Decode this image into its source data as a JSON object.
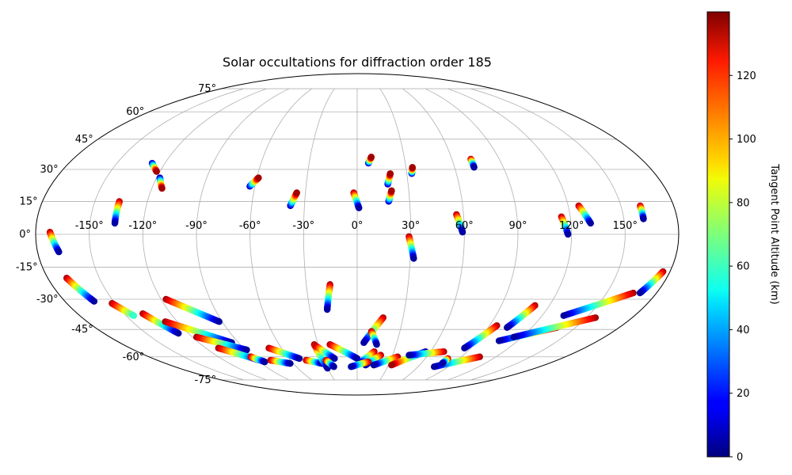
{
  "chart_data": {
    "type": "scatter",
    "projection": "mollweide",
    "title": "Solar occultations for diffraction order 185",
    "xlabel": "",
    "ylabel": "",
    "grid": true,
    "lon_ticks": [
      "-150°",
      "-120°",
      "-90°",
      "-60°",
      "-30°",
      "0°",
      "30°",
      "60°",
      "90°",
      "120°",
      "150°"
    ],
    "lat_ticks": [
      "75°",
      "60°",
      "45°",
      "30°",
      "15°",
      "0°",
      "-15°",
      "-30°",
      "-45°",
      "-60°",
      "-75°"
    ],
    "colorbar": {
      "label": "Tangent Point Altitude (km)",
      "ticks": [
        "0",
        "20",
        "40",
        "60",
        "80",
        "100",
        "120"
      ],
      "range": [
        0,
        140
      ],
      "colormap": "jet"
    },
    "series": [
      {
        "lon_start": -128,
        "lat_start": 33,
        "lon_end": -122,
        "lat_end": 29,
        "alt_start": 5,
        "alt_end": 135
      },
      {
        "lon_start": -118,
        "lat_start": 26,
        "lon_end": -114,
        "lat_end": 21,
        "alt_start": 5,
        "alt_end": 135
      },
      {
        "lon_start": -136,
        "lat_start": 15,
        "lon_end": -136,
        "lat_end": 5,
        "alt_start": 135,
        "alt_end": 5
      },
      {
        "lon_start": -63,
        "lat_start": 22,
        "lon_end": -59,
        "lat_end": 26,
        "alt_start": 5,
        "alt_end": 135
      },
      {
        "lon_start": -38,
        "lat_start": 13,
        "lon_end": -35,
        "lat_end": 19,
        "alt_start": 5,
        "alt_end": 135
      },
      {
        "lon_start": -2,
        "lat_start": 19,
        "lon_end": 1,
        "lat_end": 12,
        "alt_start": 135,
        "alt_end": 5
      },
      {
        "lon_start": 7,
        "lat_start": 33,
        "lon_end": 9,
        "lat_end": 36,
        "alt_start": 5,
        "alt_end": 135
      },
      {
        "lon_start": 18,
        "lat_start": 23,
        "lon_end": 20,
        "lat_end": 28,
        "alt_start": 5,
        "alt_end": 135
      },
      {
        "lon_start": 18,
        "lat_start": 15,
        "lon_end": 20,
        "lat_end": 20,
        "alt_start": 5,
        "alt_end": 135
      },
      {
        "lon_start": 33,
        "lat_start": 28,
        "lon_end": 34,
        "lat_end": 31,
        "alt_start": 5,
        "alt_end": 135
      },
      {
        "lon_start": 29,
        "lat_start": -1,
        "lon_end": 32,
        "lat_end": -11,
        "alt_start": 135,
        "alt_end": 5
      },
      {
        "lon_start": 56,
        "lat_start": 9,
        "lon_end": 59,
        "lat_end": 1,
        "alt_start": 135,
        "alt_end": 5
      },
      {
        "lon_start": 72,
        "lat_start": 35,
        "lon_end": 72,
        "lat_end": 31,
        "alt_start": 135,
        "alt_end": 5
      },
      {
        "lon_start": 115,
        "lat_start": 8,
        "lon_end": 118,
        "lat_end": 0,
        "alt_start": 135,
        "alt_end": 5
      },
      {
        "lon_start": 126,
        "lat_start": 13,
        "lon_end": 131,
        "lat_end": 5,
        "alt_start": 135,
        "alt_end": 5
      },
      {
        "lon_start": 161,
        "lat_start": 13,
        "lon_end": 161,
        "lat_end": 7,
        "alt_start": 135,
        "alt_end": 5
      },
      {
        "lon_start": -172,
        "lat_start": 1,
        "lon_end": -168,
        "lat_end": -8,
        "alt_start": 135,
        "alt_end": 5
      },
      {
        "lon_start": -169,
        "lat_start": -20,
        "lon_end": -162,
        "lat_end": -31,
        "alt_start": 135,
        "alt_end": 5
      },
      {
        "lon_start": -152,
        "lat_start": -32,
        "lon_end": -145,
        "lat_end": -38,
        "alt_start": 135,
        "alt_end": 60
      },
      {
        "lon_start": -138,
        "lat_start": -37,
        "lon_end": -127,
        "lat_end": -47,
        "alt_start": 135,
        "alt_end": 5
      },
      {
        "lon_start": -128,
        "lat_start": -41,
        "lon_end": -95,
        "lat_end": -52,
        "alt_start": 135,
        "alt_end": 5
      },
      {
        "lon_start": -117,
        "lat_start": -30,
        "lon_end": -92,
        "lat_end": -41,
        "alt_start": 135,
        "alt_end": 5
      },
      {
        "lon_start": -117,
        "lat_start": -49,
        "lon_end": -89,
        "lat_end": -56,
        "alt_start": 135,
        "alt_end": 5
      },
      {
        "lon_start": -110,
        "lat_start": -55,
        "lon_end": -88,
        "lat_end": -62,
        "alt_start": 135,
        "alt_end": 5
      },
      {
        "lon_start": -92,
        "lat_start": -60,
        "lon_end": -85,
        "lat_end": -63,
        "alt_start": 135,
        "alt_end": 5
      },
      {
        "lon_start": -70,
        "lat_start": -55,
        "lon_end": -51,
        "lat_end": -61,
        "alt_start": 135,
        "alt_end": 5
      },
      {
        "lon_start": -78,
        "lat_start": -62,
        "lon_end": -63,
        "lat_end": -64,
        "alt_start": 135,
        "alt_end": 5
      },
      {
        "lon_start": -46,
        "lat_start": -62,
        "lon_end": -33,
        "lat_end": -64,
        "alt_start": 135,
        "alt_end": 5
      },
      {
        "lon_start": -33,
        "lat_start": -53,
        "lon_end": -30,
        "lat_end": -67,
        "alt_start": 135,
        "alt_end": 5
      },
      {
        "lon_start": -32,
        "lat_start": -54,
        "lon_end": -20,
        "lat_end": -61,
        "alt_start": 135,
        "alt_end": 5
      },
      {
        "lon_start": -28,
        "lat_start": -62,
        "lon_end": -23,
        "lat_end": -66,
        "alt_start": 135,
        "alt_end": 5
      },
      {
        "lon_start": -16,
        "lat_start": -23,
        "lon_end": -19,
        "lat_end": -35,
        "alt_start": 135,
        "alt_end": 5
      },
      {
        "lon_start": -21,
        "lat_start": -53,
        "lon_end": 0,
        "lat_end": -61,
        "alt_start": 135,
        "alt_end": 5
      },
      {
        "lon_start": 17,
        "lat_start": -39,
        "lon_end": 5,
        "lat_end": -52,
        "alt_start": 135,
        "alt_end": 5
      },
      {
        "lon_start": 10,
        "lat_start": -46,
        "lon_end": 15,
        "lat_end": -53,
        "alt_start": 135,
        "alt_end": 5
      },
      {
        "lon_start": 14,
        "lat_start": -57,
        "lon_end": 2,
        "lat_end": -64,
        "alt_start": 135,
        "alt_end": 5
      },
      {
        "lon_start": 20,
        "lat_start": -59,
        "lon_end": 8,
        "lat_end": -65,
        "alt_start": 135,
        "alt_end": 5
      },
      {
        "lon_start": 35,
        "lat_start": -60,
        "lon_end": 16,
        "lat_end": -65,
        "alt_start": 135,
        "alt_end": 5
      },
      {
        "lon_start": 10,
        "lat_start": -63,
        "lon_end": -6,
        "lat_end": -66,
        "alt_start": 135,
        "alt_end": 5
      },
      {
        "lon_start": 56,
        "lat_start": -57,
        "lon_end": 33,
        "lat_end": -65,
        "alt_start": 5,
        "alt_end": 135
      },
      {
        "lon_start": 71,
        "lat_start": -57,
        "lon_end": 44,
        "lat_end": -59,
        "alt_start": 135,
        "alt_end": 5
      },
      {
        "lon_start": 95,
        "lat_start": -43,
        "lon_end": 85,
        "lat_end": -55,
        "alt_start": 135,
        "alt_end": 5
      },
      {
        "lon_start": 111,
        "lat_start": -33,
        "lon_end": 103,
        "lat_end": -44,
        "alt_start": 135,
        "alt_end": 5
      },
      {
        "lon_start": 106,
        "lat_start": -60,
        "lon_end": 76,
        "lat_end": -66,
        "alt_start": 135,
        "alt_end": 5
      },
      {
        "lon_start": 80,
        "lat_start": -61,
        "lon_end": 80,
        "lat_end": -64,
        "alt_start": 135,
        "alt_end": 5
      },
      {
        "lon_start": 137,
        "lat_start": -44,
        "lon_end": 106,
        "lat_end": -51,
        "alt_start": 135,
        "alt_end": 5
      },
      {
        "lon_start": 156,
        "lat_start": -39,
        "lon_end": 114,
        "lat_end": -49,
        "alt_start": 135,
        "alt_end": 5
      },
      {
        "lon_start": 166,
        "lat_start": -27,
        "lon_end": 134,
        "lat_end": -38,
        "alt_start": 135,
        "alt_end": 5
      },
      {
        "lon_start": 176,
        "lat_start": -17,
        "lon_end": 170,
        "lat_end": -27,
        "alt_start": 135,
        "alt_end": 5
      }
    ]
  }
}
